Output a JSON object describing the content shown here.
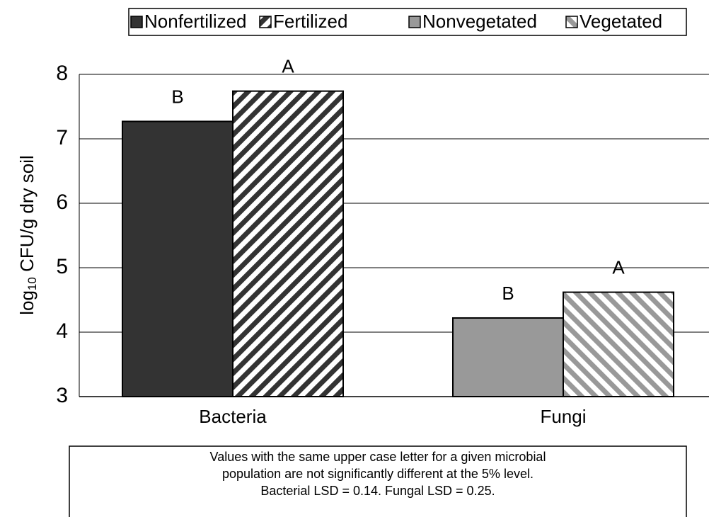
{
  "chart_data": {
    "type": "bar",
    "categories": [
      "Bacteria",
      "Fungi"
    ],
    "series": [
      {
        "name": "Nonfertilized",
        "color": "#333333",
        "pattern": "solid",
        "values": [
          7.27,
          null
        ],
        "letters": [
          "B",
          null
        ]
      },
      {
        "name": "Fertilized",
        "color": "#333333",
        "pattern": "diagonal-up",
        "values": [
          7.74,
          null
        ],
        "letters": [
          "A",
          null
        ]
      },
      {
        "name": "Nonvegetated",
        "color": "#999999",
        "pattern": "solid",
        "values": [
          null,
          4.22
        ],
        "letters": [
          null,
          "B"
        ]
      },
      {
        "name": "Vegetated",
        "color": "#999999",
        "pattern": "diagonal-down",
        "values": [
          null,
          4.62
        ],
        "letters": [
          null,
          "A"
        ]
      }
    ],
    "ylabel": {
      "base": "log",
      "subscript": "10",
      "rest": " CFU/g dry soil"
    },
    "ylim": [
      3,
      8
    ],
    "yticks": [
      3,
      4,
      5,
      6,
      7,
      8
    ],
    "grid": true,
    "legend": "top",
    "note": [
      "Values with the same upper case letter for a given microbial",
      "population are not significantly different at the 5% level.",
      "Bacterial LSD = 0.14. Fungal LSD = 0.25."
    ]
  }
}
